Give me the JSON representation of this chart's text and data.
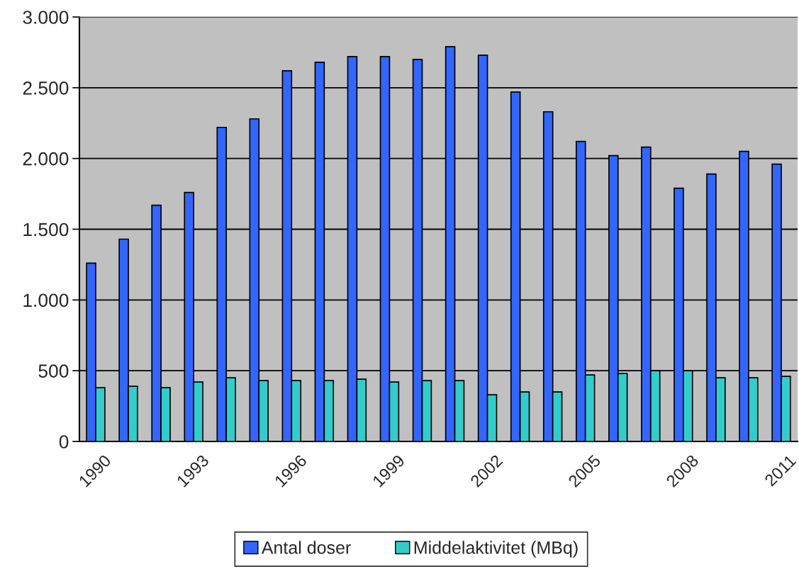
{
  "chart_data": {
    "type": "bar",
    "categories": [
      "1990",
      null,
      null,
      "1993",
      null,
      null,
      "1996",
      null,
      null,
      "1999",
      null,
      null,
      "2002",
      null,
      null,
      "2005",
      null,
      null,
      "2008",
      null,
      null,
      "2011"
    ],
    "series": [
      {
        "name": "Antal doser",
        "color": "#3366ff",
        "values": [
          1260,
          1430,
          1670,
          1760,
          2220,
          2280,
          2620,
          2680,
          2720,
          2720,
          2700,
          2790,
          2730,
          2470,
          2330,
          2120,
          2020,
          2080,
          1790,
          1890,
          2050,
          1960
        ]
      },
      {
        "name": "Middelaktivitet (MBq)",
        "color": "#33cccc",
        "values": [
          380,
          390,
          380,
          420,
          450,
          430,
          430,
          430,
          440,
          420,
          430,
          430,
          330,
          350,
          350,
          470,
          480,
          500,
          500,
          450,
          450,
          460
        ]
      }
    ],
    "ylim": [
      0,
      3000
    ],
    "yticks": [
      {
        "value": 0,
        "label": "0"
      },
      {
        "value": 500,
        "label": "500"
      },
      {
        "value": 1000,
        "label": "1.000"
      },
      {
        "value": 1500,
        "label": "1.500"
      },
      {
        "value": 2000,
        "label": "2.000"
      },
      {
        "value": 2500,
        "label": "2.500"
      },
      {
        "value": 3000,
        "label": "3.000"
      }
    ],
    "grid": "y",
    "legend": "bottom"
  }
}
